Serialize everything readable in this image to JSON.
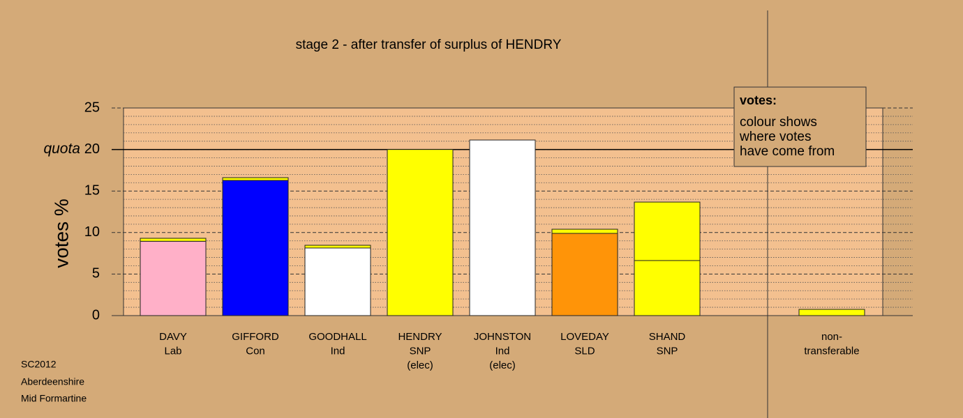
{
  "chart_data": {
    "type": "stacked-bar",
    "title": "stage 2 - after transfer of surplus of HENDRY",
    "y_label": "votes %",
    "categories": [
      [
        "DAVY",
        "Lab"
      ],
      [
        "GIFFORD",
        "Con"
      ],
      [
        "GOODHALL",
        "Ind"
      ],
      [
        "HENDRY",
        "SNP",
        "(elec)"
      ],
      [
        "JOHNSTON",
        "Ind",
        "(elec)"
      ],
      [
        "LOVEDAY",
        "SLD"
      ],
      [
        "SHAND",
        "SNP"
      ],
      null,
      [
        "non-",
        "transferable"
      ]
    ],
    "series": [
      {
        "colors": [
          "#ffb0c8",
          "#0000ff",
          "#ffffff",
          "#ffff00",
          "#ffffff",
          "#ff9408",
          "#ffff00",
          null,
          null
        ],
        "values": [
          8.95,
          16.28,
          8.14,
          20.0,
          21.14,
          9.9,
          6.63,
          null,
          null
        ]
      },
      {
        "color": "#ffff00",
        "values": [
          0.36,
          0.33,
          0.33,
          null,
          null,
          0.5,
          7.04,
          null,
          0.75
        ]
      }
    ],
    "ylim": [
      0,
      25
    ],
    "yticks": [
      0,
      5,
      10,
      15,
      20,
      25
    ],
    "yminor": [
      1,
      2,
      3,
      4,
      6,
      7,
      8,
      9,
      11,
      12,
      13,
      14,
      16,
      17,
      18,
      19,
      21,
      22,
      23,
      24
    ],
    "quota": {
      "label": "quota",
      "value": 20
    },
    "legend": {
      "title": "votes:",
      "lines": [
        "colour shows",
        "where votes",
        "have come from"
      ]
    },
    "footer": [
      "SC2012",
      "Aberdeenshire",
      "Mid Formartine"
    ]
  }
}
